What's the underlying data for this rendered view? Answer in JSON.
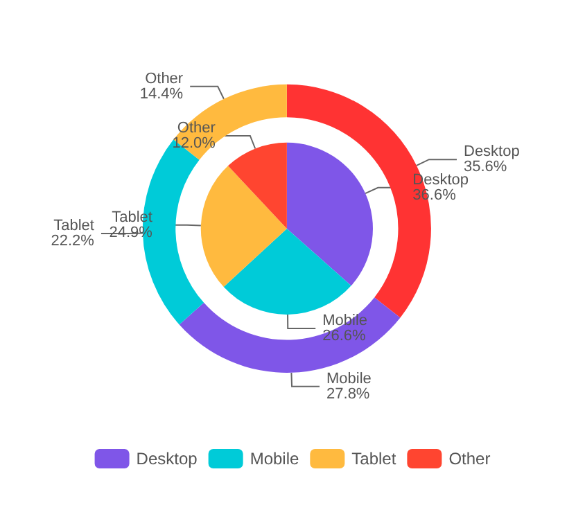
{
  "chart_data": {
    "type": "donut",
    "categories": [
      "Desktop",
      "Mobile",
      "Tablet",
      "Other"
    ],
    "legend": "bottom",
    "series": [
      {
        "type": "pie",
        "values": [
          36.6,
          26.6,
          24.9,
          12.0
        ],
        "value_labels": [
          "36.6%",
          "26.6%",
          "24.9%",
          "12.0%"
        ],
        "colors": [
          "#7f56e8",
          "#00cbd8",
          "#ffba3f",
          "#ff4530"
        ]
      },
      {
        "values": [
          35.6,
          27.8,
          22.2,
          14.4
        ],
        "value_labels": [
          "35.6%",
          "27.8%",
          "22.2%",
          "14.4%"
        ],
        "colors": [
          "#ff3333",
          "#7f56e8",
          "#00cbd8",
          "#ffba3f"
        ]
      }
    ]
  }
}
